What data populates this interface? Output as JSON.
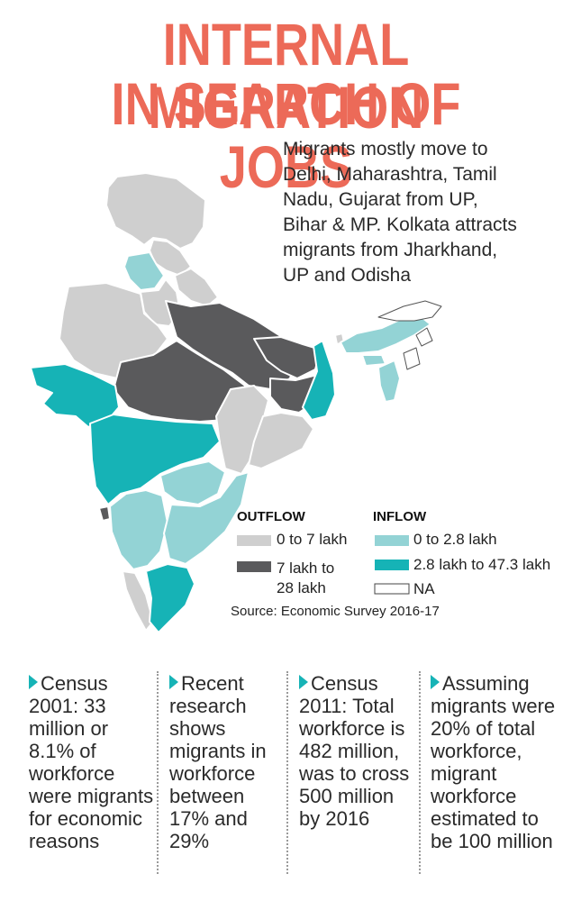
{
  "title": {
    "line1": "INTERNAL MIGRATION",
    "line2": "IN SEARCH OF JOBS"
  },
  "intro": "Migrants mostly move to\nDelhi, Maharashtra, Tamil\nNadu, Gujarat from UP,\nBihar & MP. Kolkata attracts\nmigrants from Jharkhand,\nUP and Odisha",
  "colors": {
    "title": "#ec6a58",
    "outflow_low": "#cfcfcf",
    "outflow_high": "#5a5a5c",
    "inflow_low": "#93d3d5",
    "inflow_high": "#16b3b6",
    "na": "#ffffff",
    "arrow": "#16b3b6"
  },
  "legend": {
    "outflow_heading": "OUTFLOW",
    "inflow_heading": "INFLOW",
    "outflow": [
      "0 to 7 lakh",
      "7 lakh to\n28 lakh"
    ],
    "inflow": [
      "0 to 2.8 lakh",
      "2.8 lakh to 47.3 lakh",
      "NA"
    ]
  },
  "source": "Source: Economic Survey 2016-17",
  "facts": [
    "Census 2001: 33 million or 8.1% of workforce were migrants for economic reasons",
    "Recent research shows migrants in workforce between 17% and 29%",
    "Census 2011: Total workforce is 482 million, was to cross 500 million by 2016",
    "Assuming migrants were 20% of total workforce, migrant workforce estimated to be 100 million"
  ]
}
